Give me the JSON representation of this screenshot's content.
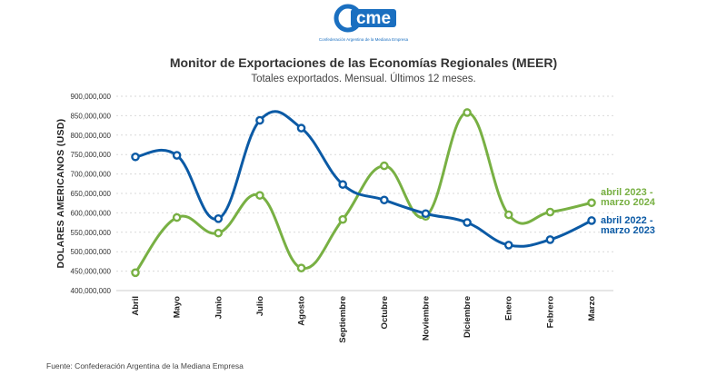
{
  "logo": {
    "text": "cme",
    "subtitle": "Confederación Argentina de la Mediana Empresa",
    "color": "#1a6fc0"
  },
  "source": "Fuente: Confederación Argentina de la Mediana Empresa",
  "chart_data": {
    "type": "line",
    "title": "Monitor de Exportaciones de las Economías Regionales (MEER)",
    "subtitle": "Totales exportados. Mensual. Últimos 12 meses.",
    "xlabel": "",
    "ylabel": "DOLARES AMERICANOS (USD)",
    "ylim": [
      400000000,
      900000000
    ],
    "yticks": [
      "900,000,000",
      "850,000,000",
      "800,000,000",
      "750,000,000",
      "700,000,000",
      "650,000,000",
      "600,000,000",
      "550,000,000",
      "500,000,000",
      "450,000,000",
      "400,000,000"
    ],
    "categories": [
      "Abril",
      "Mayo",
      "Junio",
      "Julio",
      "Agosto",
      "Septiembre",
      "Octubre",
      "Noviembre",
      "Diciembre",
      "Enero",
      "Febrero",
      "Marzo"
    ],
    "grid": true,
    "legend_position": "right, at line ends",
    "series": [
      {
        "name": "abril 2022 - marzo 2023",
        "label_lines": [
          "abril 2022 -",
          "marzo 2023"
        ],
        "color": "#0b5aa5",
        "values": [
          744000000,
          748000000,
          585000000,
          838000000,
          818000000,
          673000000,
          633000000,
          598000000,
          575000000,
          517000000,
          531000000,
          580000000
        ]
      },
      {
        "name": "abril 2023 - marzo 2024",
        "label_lines": [
          "abril 2023 -",
          "marzo 2024"
        ],
        "color": "#78b043",
        "values": [
          446000000,
          588000000,
          548000000,
          645000000,
          458000000,
          583000000,
          721000000,
          591000000,
          858000000,
          595000000,
          602000000,
          626000000
        ]
      }
    ]
  }
}
